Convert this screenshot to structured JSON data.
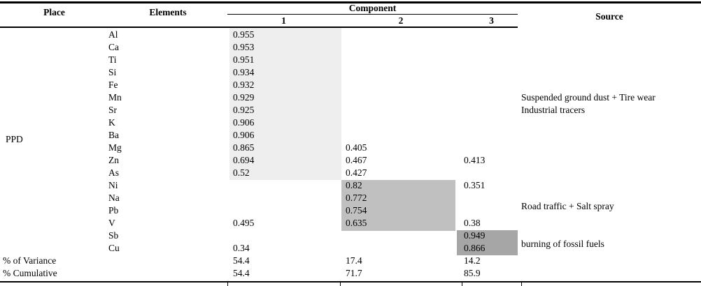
{
  "header": {
    "place": "Place",
    "elements": "Elements",
    "component": "Component",
    "sub_columns": [
      "1",
      "2",
      "3"
    ],
    "source": "Source"
  },
  "place_group_label": "PPD",
  "rows": [
    {
      "element": "Al",
      "c1": "0.955",
      "c2": "",
      "c3": ""
    },
    {
      "element": "Ca",
      "c1": "0.953",
      "c2": "",
      "c3": ""
    },
    {
      "element": "Ti",
      "c1": "0.951",
      "c2": "",
      "c3": ""
    },
    {
      "element": "Si",
      "c1": "0.934",
      "c2": "",
      "c3": ""
    },
    {
      "element": "Fe",
      "c1": "0.932",
      "c2": "",
      "c3": ""
    },
    {
      "element": "Mn",
      "c1": "0.929",
      "c2": "",
      "c3": ""
    },
    {
      "element": "Sr",
      "c1": "0.925",
      "c2": "",
      "c3": ""
    },
    {
      "element": "K",
      "c1": "0.906",
      "c2": "",
      "c3": ""
    },
    {
      "element": "Ba",
      "c1": "0.906",
      "c2": "",
      "c3": ""
    },
    {
      "element": "Mg",
      "c1": "0.865",
      "c2": "0.405",
      "c3": ""
    },
    {
      "element": "Zn",
      "c1": "0.694",
      "c2": "0.467",
      "c3": "0.413"
    },
    {
      "element": "As",
      "c1": "0.52",
      "c2": "0.427",
      "c3": ""
    },
    {
      "element": "Ni",
      "c1": "",
      "c2": "0.82",
      "c3": "0.351"
    },
    {
      "element": "Na",
      "c1": "",
      "c2": "0.772",
      "c3": ""
    },
    {
      "element": "Pb",
      "c1": "",
      "c2": "0.754",
      "c3": ""
    },
    {
      "element": "V",
      "c1": "0.495",
      "c2": "0.635",
      "c3": "0.38"
    },
    {
      "element": "Sb",
      "c1": "",
      "c2": "",
      "c3": "0.949"
    },
    {
      "element": "Cu",
      "c1": "0.34",
      "c2": "",
      "c3": "0.866"
    }
  ],
  "summary_rows": [
    {
      "label": "% of Variance",
      "c1": "54.4",
      "c2": "17.4",
      "c3": "14.2"
    },
    {
      "label": "% Cumulative",
      "c1": "54.4",
      "c2": "71.7",
      "c3": "85.9"
    }
  ],
  "source_annotations": [
    {
      "lines": [
        "Suspended ground dust + Tire wear",
        "Industrial tracers"
      ]
    },
    {
      "lines": [
        "Road traffic + Salt spray"
      ]
    },
    {
      "lines": [
        "burning of fossil fuels"
      ]
    }
  ],
  "colors": {
    "highlight_component1": "#eeeeee",
    "highlight_component2": "#c0c0c0",
    "highlight_component3": "#a6a6a6"
  }
}
